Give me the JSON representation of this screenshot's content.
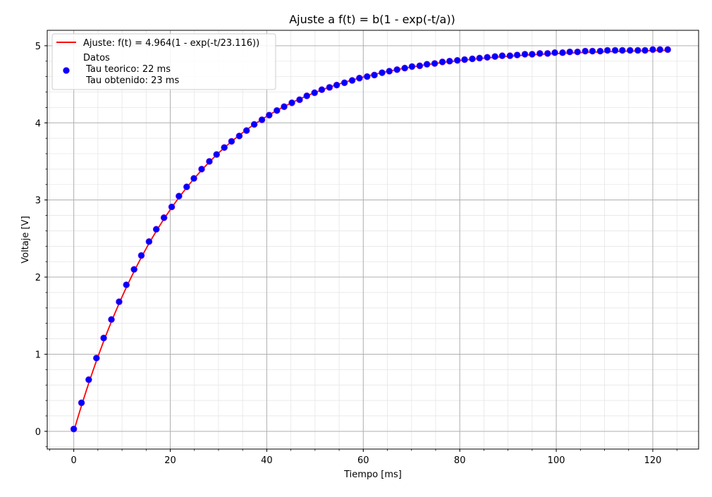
{
  "chart_data": {
    "type": "scatter",
    "title": "Ajuste a f(t) = b(1 - exp(-t/a))",
    "xlabel": "Tiempo [ms]",
    "ylabel": "Voltaje [V]",
    "xlim": [
      -5.5,
      129.5
    ],
    "ylim": [
      -0.23,
      5.2
    ],
    "xticks": [
      0,
      20,
      40,
      60,
      80,
      100,
      120
    ],
    "yticks": [
      0,
      1,
      2,
      3,
      4,
      5
    ],
    "grid": true,
    "legend_position": "top-left",
    "fit": {
      "name": "Ajuste: f(t) = 4.964(1 - exp(-t/23.116))",
      "b": 4.964,
      "a": 23.116,
      "t_start": 0,
      "t_end": 123.3,
      "color": "#ff0000"
    },
    "series": [
      {
        "name": "Datos",
        "legend_lines": [
          "Datos",
          " Tau teorico: 22 ms",
          " Tau obtenido: 23 ms"
        ],
        "color": "#0000ff",
        "edge_color": "#8a2be2",
        "x": [
          0.0,
          1.6,
          3.1,
          4.7,
          6.2,
          7.8,
          9.4,
          10.9,
          12.5,
          14.0,
          15.6,
          17.1,
          18.7,
          20.3,
          21.8,
          23.4,
          24.9,
          26.5,
          28.1,
          29.6,
          31.2,
          32.7,
          34.3,
          35.8,
          37.4,
          39.0,
          40.5,
          42.1,
          43.6,
          45.2,
          46.8,
          48.3,
          49.9,
          51.4,
          53.0,
          54.5,
          56.1,
          57.7,
          59.2,
          60.8,
          62.3,
          63.9,
          65.4,
          67.0,
          68.6,
          70.1,
          71.7,
          73.2,
          74.8,
          76.4,
          77.9,
          79.5,
          81.0,
          82.6,
          84.1,
          85.7,
          87.3,
          88.8,
          90.4,
          91.9,
          93.5,
          95.0,
          96.6,
          98.2,
          99.7,
          101.3,
          102.8,
          104.4,
          106.0,
          107.5,
          109.1,
          110.6,
          112.2,
          113.7,
          115.3,
          116.9,
          118.4,
          120.0,
          121.5,
          123.1
        ],
        "y": [
          0.03,
          0.37,
          0.67,
          0.95,
          1.21,
          1.45,
          1.68,
          1.9,
          2.1,
          2.28,
          2.46,
          2.62,
          2.77,
          2.91,
          3.05,
          3.17,
          3.28,
          3.4,
          3.5,
          3.59,
          3.68,
          3.76,
          3.83,
          3.9,
          3.98,
          4.04,
          4.1,
          4.16,
          4.21,
          4.26,
          4.3,
          4.35,
          4.39,
          4.43,
          4.46,
          4.49,
          4.52,
          4.55,
          4.58,
          4.6,
          4.62,
          4.65,
          4.67,
          4.69,
          4.71,
          4.73,
          4.74,
          4.76,
          4.77,
          4.79,
          4.8,
          4.81,
          4.82,
          4.83,
          4.84,
          4.85,
          4.86,
          4.87,
          4.87,
          4.88,
          4.89,
          4.89,
          4.9,
          4.9,
          4.91,
          4.91,
          4.92,
          4.92,
          4.93,
          4.93,
          4.93,
          4.94,
          4.94,
          4.94,
          4.94,
          4.94,
          4.94,
          4.95,
          4.95,
          4.95
        ]
      }
    ]
  }
}
